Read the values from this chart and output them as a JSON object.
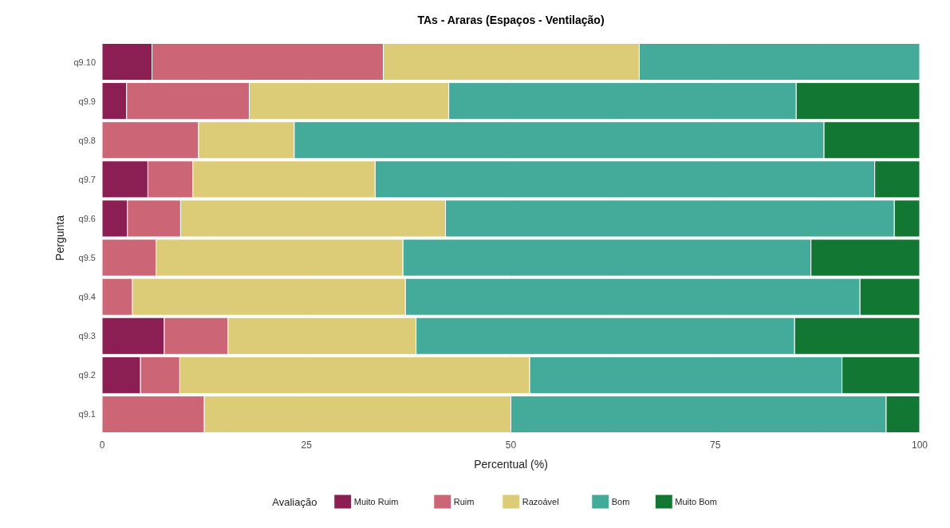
{
  "chart_data": {
    "type": "bar",
    "title": "TAs - Araras (Espaços - Ventilação)",
    "xlabel": "Percentual (%)",
    "ylabel": "Pergunta",
    "legend_title": "Avaliação",
    "orientation": "horizontal",
    "stacked": true,
    "categories": [
      "q9.10",
      "q9.9",
      "q9.8",
      "q9.7",
      "q9.6",
      "q9.5",
      "q9.4",
      "q9.3",
      "q9.2",
      "q9.1"
    ],
    "series": [
      {
        "name": "Muito Ruim",
        "color": "#8b1e52",
        "values": [
          6.1,
          3.0,
          0,
          5.6,
          3.1,
          0,
          0,
          7.6,
          4.7,
          0
        ]
      },
      {
        "name": "Ruim",
        "color": "#cc6677",
        "values": [
          28.3,
          15.0,
          11.8,
          5.5,
          6.5,
          6.6,
          3.7,
          7.8,
          4.8,
          12.5
        ]
      },
      {
        "name": "Razoável",
        "color": "#ddcc77",
        "values": [
          31.3,
          24.4,
          11.7,
          22.3,
          32.4,
          30.2,
          33.4,
          23.0,
          42.8,
          37.5
        ]
      },
      {
        "name": "Bom",
        "color": "#44aa99",
        "values": [
          34.3,
          42.5,
          64.8,
          61.1,
          54.9,
          49.9,
          55.6,
          46.3,
          38.2,
          45.9
        ]
      },
      {
        "name": "Muito Bom",
        "color": "#117733",
        "values": [
          0,
          15.1,
          11.7,
          5.5,
          3.1,
          13.3,
          7.3,
          15.3,
          9.5,
          4.1
        ]
      }
    ],
    "xlim": [
      0,
      100
    ],
    "xticks": [
      0,
      25,
      50,
      75,
      100
    ],
    "grid": true,
    "legend": "bottom"
  }
}
